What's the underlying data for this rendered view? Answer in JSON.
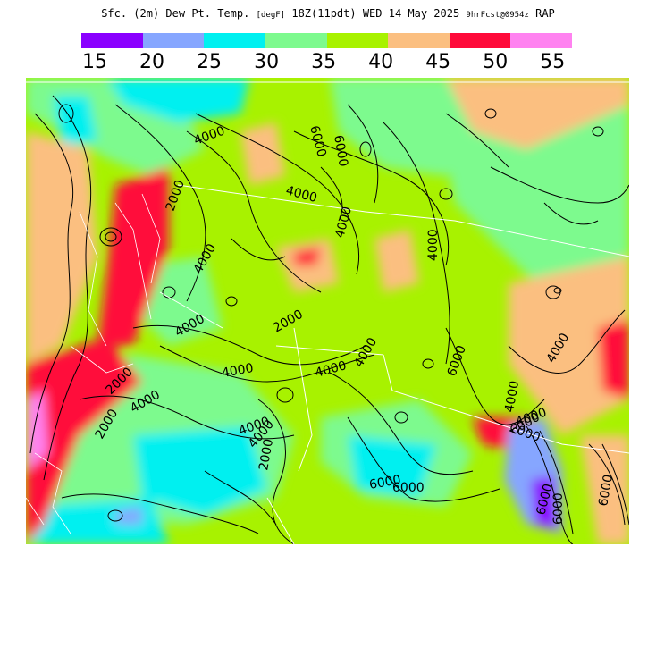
{
  "header": {
    "title_main": "Sfc. (2m) Dew Pt. Temp.",
    "title_unit": "[degF]",
    "title_time": "18Z(11pdt) WED 14 May 2025",
    "title_init": "9hrFcst@0954z",
    "title_model": "RAP"
  },
  "legend": {
    "swatches": [
      {
        "color": "#8a00ff"
      },
      {
        "color": "#86a6ff"
      },
      {
        "color": "#00f0f0"
      },
      {
        "color": "#7dfa8e"
      },
      {
        "color": "#a8f200"
      },
      {
        "color": "#fbbf80"
      },
      {
        "color": "#ff0a3a"
      },
      {
        "color": "#ff82f0"
      }
    ],
    "labels": [
      "15",
      "20",
      "25",
      "30",
      "35",
      "40",
      "45",
      "50",
      "55"
    ]
  },
  "map": {
    "contour_labels": [
      "6000",
      "4000",
      "4000",
      "6000",
      "2000",
      "4000",
      "4000",
      "4000",
      "4000",
      "2000",
      "4000",
      "4000",
      "2000",
      "4000",
      "2000",
      "4000",
      "2000",
      "6000",
      "4000",
      "4000",
      "4000",
      "2000",
      "6000",
      "6000",
      "6000",
      "4000",
      "4000",
      "6000",
      "6000",
      "6000"
    ]
  }
}
